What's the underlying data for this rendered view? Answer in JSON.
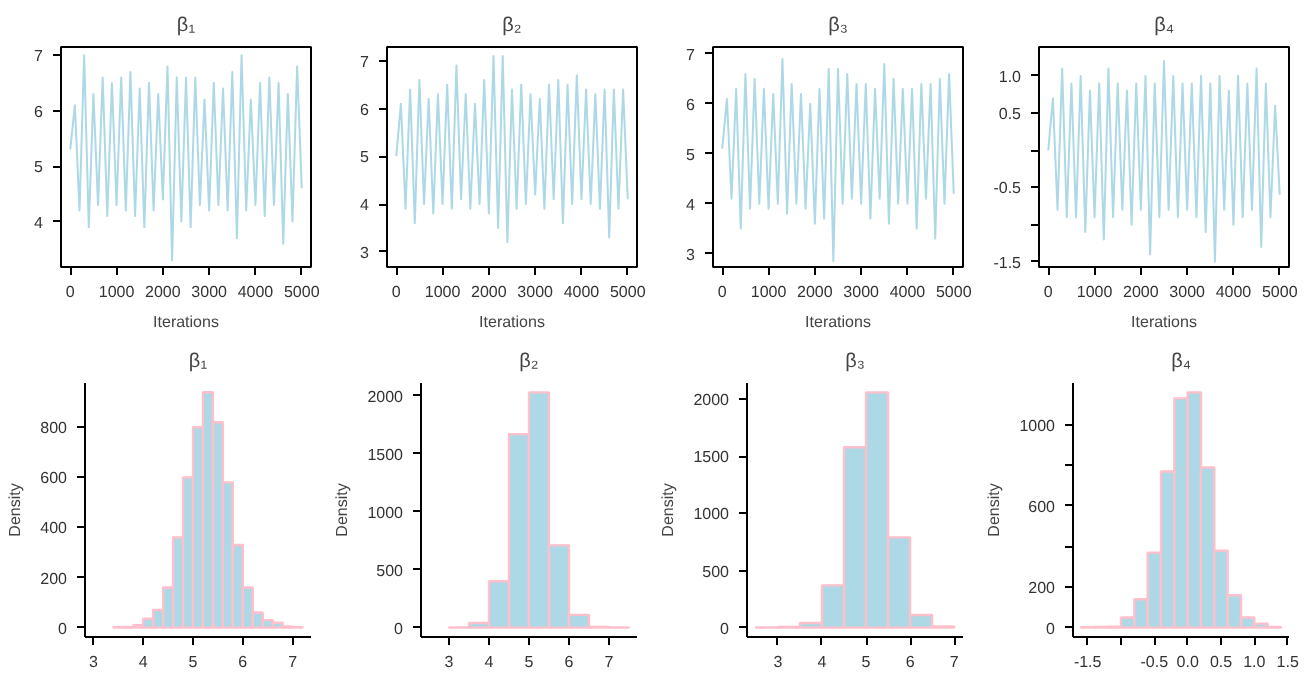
{
  "chart_data": [
    {
      "type": "line",
      "title": "β₁",
      "xlabel": "Iterations",
      "x": [
        0,
        100,
        200,
        300,
        400,
        500,
        600,
        700,
        800,
        900,
        1000,
        1100,
        1200,
        1300,
        1400,
        1500,
        1600,
        1700,
        1800,
        1900,
        2000,
        2100,
        2200,
        2300,
        2400,
        2500,
        2600,
        2700,
        2800,
        2900,
        3000,
        3100,
        3200,
        3300,
        3400,
        3500,
        3600,
        3700,
        3800,
        3900,
        4000,
        4100,
        4200,
        4300,
        4400,
        4500,
        4600,
        4700,
        4800,
        4900,
        5000
      ],
      "color": "#add8e6",
      "xlim": [
        -200,
        5200
      ],
      "ylim": [
        3.18,
        7.15
      ],
      "xticks": [
        0,
        1000,
        2000,
        3000,
        4000,
        5000
      ],
      "yticks": [
        4,
        5,
        6,
        7
      ],
      "values": [
        5.3,
        6.1,
        4.2,
        7.0,
        3.9,
        6.3,
        4.3,
        6.6,
        4.1,
        6.5,
        4.3,
        6.6,
        4.2,
        6.7,
        4.1,
        6.4,
        3.9,
        6.5,
        4.2,
        6.3,
        4.4,
        6.8,
        3.3,
        6.6,
        4.0,
        6.6,
        3.9,
        6.6,
        4.3,
        6.2,
        4.2,
        6.5,
        4.3,
        6.4,
        4.2,
        6.7,
        3.7,
        7.0,
        4.2,
        6.2,
        4.3,
        6.5,
        4.1,
        6.6,
        4.3,
        6.5,
        3.6,
        6.3,
        4.0,
        6.8,
        4.6
      ]
    },
    {
      "type": "line",
      "title": "β₂",
      "xlabel": "Iterations",
      "x": [
        0,
        100,
        200,
        300,
        400,
        500,
        600,
        700,
        800,
        900,
        1000,
        1100,
        1200,
        1300,
        1400,
        1500,
        1600,
        1700,
        1800,
        1900,
        2000,
        2100,
        2200,
        2300,
        2400,
        2500,
        2600,
        2700,
        2800,
        2900,
        3000,
        3100,
        3200,
        3300,
        3400,
        3500,
        3600,
        3700,
        3800,
        3900,
        4000,
        4100,
        4200,
        4300,
        4400,
        4500,
        4600,
        4700,
        4800,
        4900,
        5000
      ],
      "color": "#add8e6",
      "xlim": [
        -200,
        5200
      ],
      "ylim": [
        2.68,
        7.29
      ],
      "xticks": [
        0,
        1000,
        2000,
        3000,
        4000,
        5000
      ],
      "yticks": [
        3,
        4,
        5,
        6,
        7
      ],
      "values": [
        5.0,
        6.1,
        3.9,
        6.4,
        3.6,
        6.6,
        4.0,
        6.2,
        3.8,
        6.3,
        4.0,
        6.5,
        3.9,
        6.9,
        4.1,
        6.3,
        3.9,
        6.1,
        4.0,
        6.6,
        3.8,
        7.1,
        3.5,
        7.1,
        3.2,
        6.4,
        3.9,
        6.5,
        4.0,
        6.3,
        4.2,
        6.2,
        3.9,
        6.5,
        4.1,
        6.6,
        3.6,
        6.5,
        4.0,
        6.7,
        4.1,
        6.4,
        4.0,
        6.3,
        3.9,
        6.4,
        3.3,
        6.4,
        3.9,
        6.4,
        4.1
      ]
    },
    {
      "type": "line",
      "title": "β₃",
      "xlabel": "Iterations",
      "x": [
        0,
        100,
        200,
        300,
        400,
        500,
        600,
        700,
        800,
        900,
        1000,
        1100,
        1200,
        1300,
        1400,
        1500,
        1600,
        1700,
        1800,
        1900,
        2000,
        2100,
        2200,
        2300,
        2400,
        2500,
        2600,
        2700,
        2800,
        2900,
        3000,
        3100,
        3200,
        3300,
        3400,
        3500,
        3600,
        3700,
        3800,
        3900,
        4000,
        4100,
        4200,
        4300,
        4400,
        4500,
        4600,
        4700,
        4800,
        4900,
        5000
      ],
      "color": "#add8e6",
      "xlim": [
        -200,
        5200
      ],
      "ylim": [
        2.73,
        7.14
      ],
      "xticks": [
        0,
        1000,
        2000,
        3000,
        4000,
        5000
      ],
      "yticks": [
        3,
        4,
        5,
        6,
        7
      ],
      "values": [
        5.1,
        6.1,
        4.1,
        6.3,
        3.5,
        6.6,
        3.9,
        6.5,
        4.0,
        6.3,
        3.9,
        6.2,
        4.0,
        6.9,
        3.8,
        6.4,
        4.0,
        6.2,
        3.9,
        6.0,
        3.6,
        6.3,
        3.7,
        6.7,
        2.85,
        6.7,
        4.0,
        6.6,
        4.1,
        6.4,
        4.0,
        6.4,
        3.7,
        6.3,
        4.1,
        6.8,
        3.6,
        6.5,
        4.0,
        6.3,
        4.0,
        6.3,
        3.5,
        6.4,
        4.1,
        6.4,
        3.3,
        6.5,
        4.0,
        6.6,
        4.2
      ]
    },
    {
      "type": "line",
      "title": "β₄",
      "xlabel": "Iterations",
      "x": [
        0,
        100,
        200,
        300,
        400,
        500,
        600,
        700,
        800,
        900,
        1000,
        1100,
        1200,
        1300,
        1400,
        1500,
        1600,
        1700,
        1800,
        1900,
        2000,
        2100,
        2200,
        2300,
        2400,
        2500,
        2600,
        2700,
        2800,
        2900,
        3000,
        3100,
        3200,
        3300,
        3400,
        3500,
        3600,
        3700,
        3800,
        3900,
        4000,
        4100,
        4200,
        4300,
        4400,
        4500,
        4600,
        4700,
        4800,
        4900,
        5000
      ],
      "color": "#add8e6",
      "xlim": [
        -200,
        5200
      ],
      "ylim": [
        -1.57,
        1.39
      ],
      "xticks": [
        0,
        1000,
        2000,
        3000,
        4000,
        5000
      ],
      "yticks": [
        {
          "value": -1.5,
          "label": "-1.5"
        },
        {
          "value": -1.0,
          "label": null
        },
        {
          "value": -0.5,
          "label": "-0.5"
        },
        {
          "value": 0.0,
          "label": null
        },
        {
          "value": 0.5,
          "label": "0.5"
        },
        {
          "value": 1.0,
          "label": "1.0"
        }
      ],
      "values": [
        0.0,
        0.7,
        -0.8,
        1.1,
        -0.9,
        0.9,
        -0.9,
        1.0,
        -1.1,
        0.8,
        -0.9,
        0.9,
        -1.2,
        1.1,
        -0.9,
        0.9,
        -0.8,
        0.8,
        -1.0,
        0.9,
        -0.8,
        1.0,
        -1.4,
        0.9,
        -0.9,
        1.2,
        -0.8,
        1.0,
        -0.9,
        0.9,
        -0.8,
        0.9,
        -0.9,
        1.0,
        -1.1,
        0.9,
        -1.5,
        1.0,
        -0.8,
        0.8,
        -1.0,
        1.0,
        -0.9,
        0.9,
        -0.8,
        1.1,
        -1.3,
        0.9,
        -0.9,
        0.6,
        -0.6
      ]
    },
    {
      "type": "histogram",
      "title": "β₁",
      "ylabel": "Density",
      "color": "#add8e6",
      "xlim": [
        2.83,
        7.37
      ],
      "ylim": [
        -37.6,
        977
      ],
      "xticks": [
        3,
        4,
        5,
        6,
        7
      ],
      "yticks": [
        0,
        200,
        400,
        600,
        800
      ],
      "bins": [
        3.4,
        3.6,
        3.8,
        4.0,
        4.2,
        4.4,
        4.6,
        4.8,
        5.0,
        5.2,
        5.4,
        5.6,
        5.8,
        6.0,
        6.2,
        6.4,
        6.6,
        6.8,
        7.0,
        7.2
      ],
      "values": [
        2,
        3,
        10,
        35,
        70,
        160,
        360,
        600,
        800,
        940,
        820,
        580,
        330,
        160,
        60,
        30,
        20,
        5,
        2
      ]
    },
    {
      "type": "histogram",
      "title": "β₂",
      "ylabel": "Density",
      "color": "#add8e6",
      "xlim": [
        2.3,
        7.7
      ],
      "ylim": [
        -81,
        2111
      ],
      "xticks": [
        3,
        4,
        5,
        6,
        7
      ],
      "yticks": [
        0,
        500,
        1000,
        1500,
        2000
      ],
      "bins": [
        3.0,
        3.5,
        4.0,
        4.5,
        5.0,
        5.5,
        6.0,
        6.5,
        7.0,
        7.5
      ],
      "values": [
        2,
        40,
        400,
        1670,
        2030,
        710,
        110,
        5,
        2
      ]
    },
    {
      "type": "histogram",
      "title": "β₃",
      "ylabel": "Density",
      "color": "#add8e6",
      "xlim": [
        2.3,
        7.2
      ],
      "ylim": [
        -82,
        2142
      ],
      "xticks": [
        3,
        4,
        5,
        6,
        7
      ],
      "yticks": [
        0,
        500,
        1000,
        1500,
        2000
      ],
      "bins": [
        2.5,
        3.0,
        3.5,
        4.0,
        4.5,
        5.0,
        5.5,
        6.0,
        6.5,
        7.0
      ],
      "values": [
        2,
        5,
        40,
        370,
        1580,
        2060,
        790,
        110,
        10
      ]
    },
    {
      "type": "histogram",
      "title": "β₄",
      "ylabel": "Density",
      "color": "#add8e6",
      "xlim": [
        -1.72,
        1.52
      ],
      "ylim": [
        -46,
        1206
      ],
      "xticks": [
        {
          "value": -1.5,
          "label": "-1.5"
        },
        {
          "value": -1.0,
          "label": null
        },
        {
          "value": -0.5,
          "label": "-0.5"
        },
        {
          "value": 0.0,
          "label": "0.0"
        },
        {
          "value": 0.5,
          "label": "0.5"
        },
        {
          "value": 1.0,
          "label": "1.0"
        },
        {
          "value": 1.5,
          "label": "1.5"
        }
      ],
      "yticks": [
        0,
        200,
        {
          "value": 400,
          "label": null
        },
        600,
        {
          "value": 800,
          "label": null
        },
        1000
      ],
      "bins": [
        -1.6,
        -1.4,
        -1.2,
        -1.0,
        -0.8,
        -0.6,
        -0.4,
        -0.2,
        0.0,
        0.2,
        0.4,
        0.6,
        0.8,
        1.0,
        1.2,
        1.4
      ],
      "values": [
        2,
        3,
        5,
        50,
        140,
        370,
        770,
        1130,
        1160,
        790,
        380,
        160,
        50,
        20,
        3
      ]
    }
  ]
}
